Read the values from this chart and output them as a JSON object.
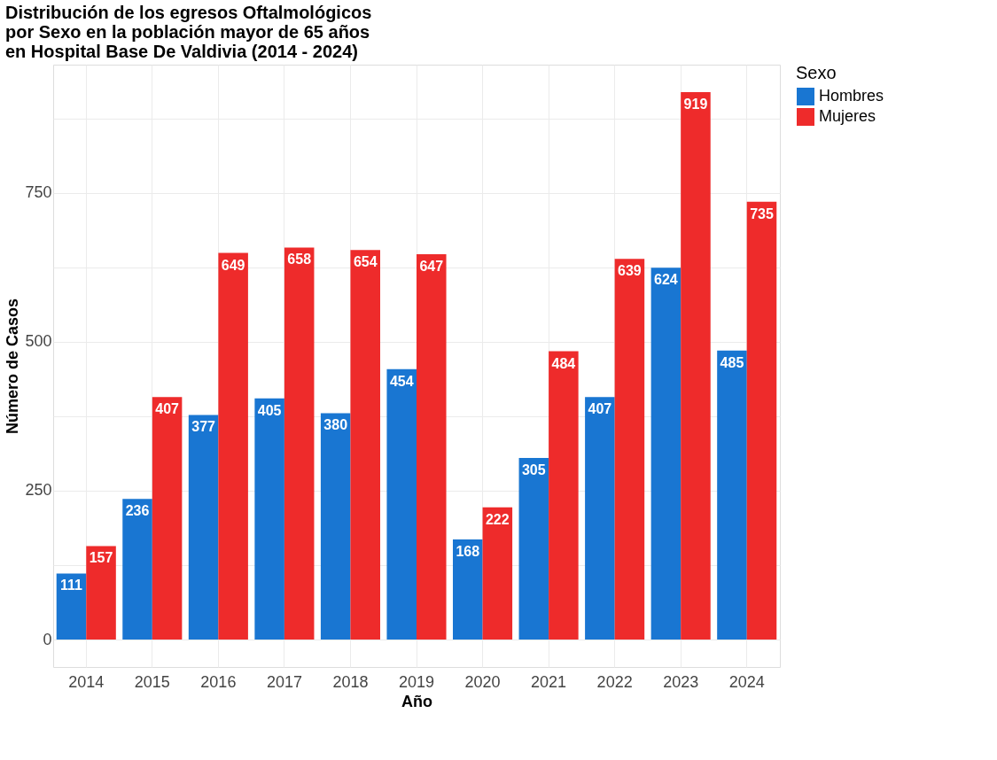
{
  "chart_data": {
    "type": "bar",
    "title": "Distribución de los egresos Oftalmológicos\npor Sexo en la población mayor de 65 años\nen Hospital Base De Valdivia (2014 - 2024)",
    "xlabel": "Año",
    "ylabel": "Número de Casos",
    "legend_title": "Sexo",
    "categories": [
      "2014",
      "2015",
      "2016",
      "2017",
      "2018",
      "2019",
      "2020",
      "2021",
      "2022",
      "2023",
      "2024"
    ],
    "series": [
      {
        "name": "Hombres",
        "color": "#1976d2",
        "values": [
          111,
          236,
          377,
          405,
          380,
          454,
          168,
          305,
          407,
          624,
          485
        ]
      },
      {
        "name": "Mujeres",
        "color": "#ee2b2b",
        "values": [
          157,
          407,
          649,
          658,
          654,
          647,
          222,
          484,
          639,
          919,
          735
        ]
      }
    ],
    "ylim": [
      -46,
      965
    ],
    "yticks": [
      0,
      {
        "value": 125,
        "label": null
      },
      250,
      {
        "value": 375,
        "label": null
      },
      500,
      {
        "value": 625,
        "label": null
      },
      750,
      {
        "value": 875,
        "label": null
      }
    ],
    "grid": true,
    "legend": "right",
    "data_labels": true
  }
}
